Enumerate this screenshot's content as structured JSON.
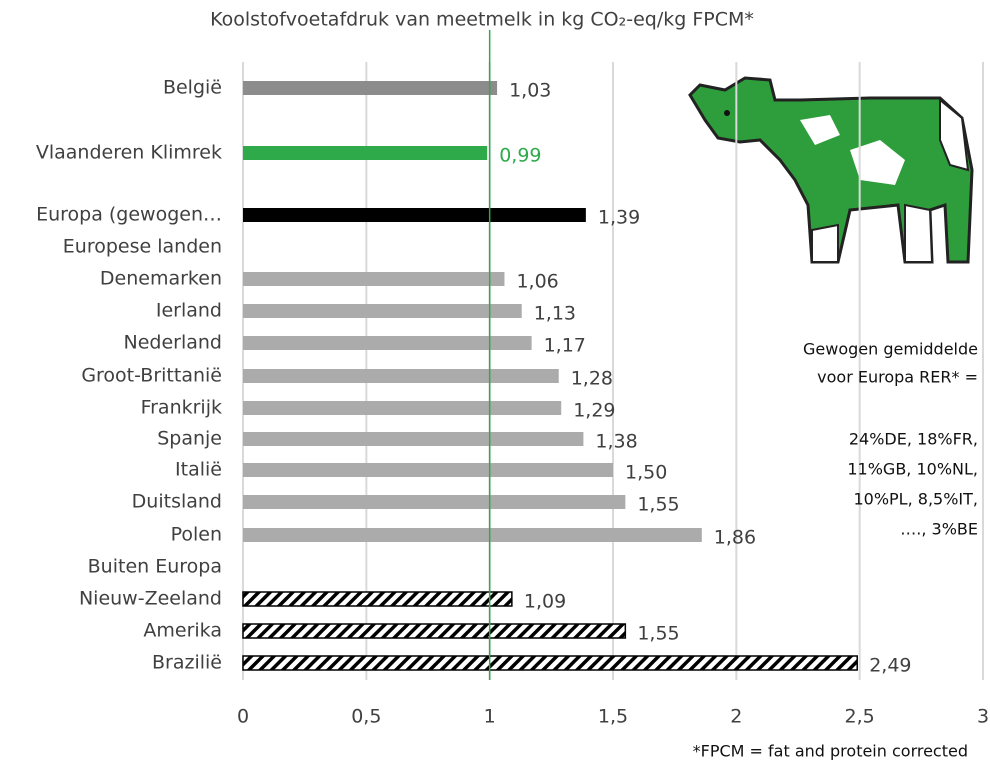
{
  "chart_data": {
    "type": "hbar",
    "title": "Koolstofvoetafdruk van meetmelk in kg CO₂-eq/kg FPCM*",
    "categories": [
      "België",
      "Vlaanderen Klimrek",
      "Europa (gewogen…",
      "Europese landen",
      "Denemarken",
      "Ierland",
      "Nederland",
      "Groot-Brittanië",
      "Frankrijk",
      "Spanje",
      "Italië",
      "Duitsland",
      "Polen",
      "Buiten Europa",
      "Nieuw-Zeeland",
      "Amerika",
      "Brazilië"
    ],
    "values": [
      1.03,
      0.99,
      1.39,
      null,
      1.06,
      1.13,
      1.17,
      1.28,
      1.29,
      1.38,
      1.5,
      1.55,
      1.86,
      null,
      1.09,
      1.55,
      2.49
    ],
    "value_labels": [
      "1,03",
      "0,99",
      "1,39",
      null,
      "1,06",
      "1,13",
      "1,17",
      "1,28",
      "1,29",
      "1,38",
      "1,50",
      "1,55",
      "1,86",
      null,
      "1,09",
      "1,55",
      "2,49"
    ],
    "colors": [
      "#8c8c8c",
      "#2eaa4a",
      "#000000",
      null,
      "#ababab",
      "#ababab",
      "#ababab",
      "#ababab",
      "#ababab",
      "#ababab",
      "#ababab",
      "#ababab",
      "#ababab",
      null,
      "#000000",
      "#000000",
      "#000000"
    ],
    "hatched": [
      false,
      false,
      false,
      false,
      false,
      false,
      false,
      false,
      false,
      false,
      false,
      false,
      false,
      false,
      true,
      true,
      true
    ],
    "xlim": [
      0,
      3
    ],
    "xticks": [
      0,
      {
        "value": 0.5,
        "label": "0,5"
      },
      1,
      {
        "value": 1.5,
        "label": "1,5"
      },
      2,
      {
        "value": 2.5,
        "label": "2,5"
      },
      3
    ],
    "grid": true,
    "reference_line": {
      "value": 1,
      "color": "#2eaa4a"
    },
    "annotation": [
      "Gewogen gemiddelde",
      "voor Europa RER* =",
      "24%DE, 18%FR,",
      "11%GB, 10%NL,",
      "10%PL, 8,5%IT,",
      "…., 3%BE"
    ],
    "footnote": "*FPCM = fat and protein corrected"
  }
}
